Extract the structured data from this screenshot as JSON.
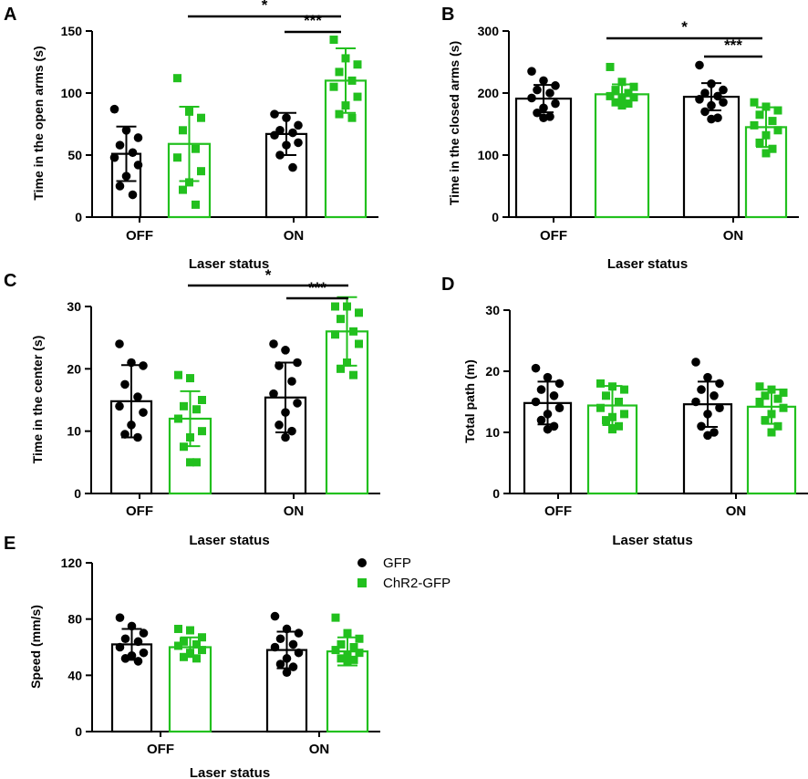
{
  "colors": {
    "gfp": "#000000",
    "chr2": "#22c01e"
  },
  "legend": [
    {
      "name": "GFP",
      "color": "#000000",
      "marker": "circle"
    },
    {
      "name": "ChR2-GFP",
      "color": "#22c01e",
      "marker": "square"
    }
  ],
  "chart_data": [
    {
      "panel": "A",
      "type": "bar",
      "ylabel": "Time in the open arms (s)",
      "xlabel": "Laser status",
      "ylim": [
        0,
        150
      ],
      "yticks": [
        0,
        50,
        100,
        150
      ],
      "categories": [
        "OFF",
        "ON"
      ],
      "series": [
        {
          "name": "GFP",
          "means": [
            51,
            67
          ],
          "sd": [
            22,
            17
          ],
          "points": [
            [
              87,
              70,
              64,
              58,
              52,
              48,
              42,
              33,
              25,
              18
            ],
            [
              83,
              80,
              74,
              70,
              68,
              66,
              60,
              58,
              50,
              40
            ]
          ]
        },
        {
          "name": "ChR2-GFP",
          "means": [
            59,
            110
          ],
          "sd": [
            30,
            26
          ],
          "points": [
            [
              112,
              85,
              80,
              70,
              55,
              48,
              37,
              28,
              22,
              10
            ],
            [
              143,
              128,
              123,
              117,
              110,
              105,
              97,
              90,
              83,
              80
            ]
          ]
        }
      ],
      "significance": [
        {
          "label": "*",
          "from": "OFF ChR2-GFP",
          "to": "ON ChR2-GFP"
        },
        {
          "label": "***",
          "from": "ON GFP",
          "to": "ON ChR2-GFP"
        }
      ]
    },
    {
      "panel": "B",
      "type": "bar",
      "ylabel": "Time in the closed arms (s)",
      "xlabel": "Laser status",
      "ylim": [
        0,
        300
      ],
      "yticks": [
        0,
        100,
        200,
        300
      ],
      "categories": [
        "OFF",
        "ON"
      ],
      "series": [
        {
          "name": "GFP",
          "means": [
            191,
            194
          ],
          "sd": [
            22,
            22
          ],
          "points": [
            [
              235,
              220,
              212,
              205,
              200,
              192,
              183,
              176,
              168,
              162,
              160
            ],
            [
              245,
              215,
              205,
              200,
              195,
              190,
              185,
              180,
              170,
              160,
              158
            ]
          ]
        },
        {
          "name": "ChR2-GFP",
          "means": [
            198,
            145
          ],
          "sd": [
            16,
            32
          ],
          "points": [
            [
              242,
              218,
              210,
              205,
              200,
              195,
              193,
              190,
              185,
              183,
              180
            ],
            [
              185,
              178,
              172,
              165,
              155,
              148,
              140,
              132,
              120,
              110,
              103
            ]
          ]
        }
      ],
      "significance": [
        {
          "label": "*",
          "from": "OFF ChR2-GFP",
          "to": "ON ChR2-GFP"
        },
        {
          "label": "***",
          "from": "ON GFP",
          "to": "ON ChR2-GFP"
        }
      ]
    },
    {
      "panel": "C",
      "type": "bar",
      "ylabel": "Time in the center (s)",
      "xlabel": "Laser status",
      "ylim": [
        0,
        30
      ],
      "yticks": [
        0,
        10,
        20,
        30
      ],
      "categories": [
        "OFF",
        "ON"
      ],
      "series": [
        {
          "name": "GFP",
          "means": [
            14.8,
            15.4
          ],
          "sd": [
            5.8,
            5.6
          ],
          "points": [
            [
              24,
              21,
              20.5,
              17.5,
              15.5,
              14,
              13,
              11,
              9.5,
              9
            ],
            [
              24,
              23,
              21,
              20.5,
              18,
              16,
              14.5,
              13,
              11,
              10,
              9
            ]
          ]
        },
        {
          "name": "ChR2-GFP",
          "means": [
            12,
            26
          ],
          "sd": [
            4.4,
            5.5
          ],
          "points": [
            [
              19,
              18.5,
              15,
              14,
              13.5,
              12,
              10,
              9,
              7.5,
              5,
              5
            ],
            [
              30,
              30,
              29,
              28,
              26,
              25.5,
              24,
              21,
              20,
              19
            ]
          ]
        }
      ],
      "significance": [
        {
          "label": "*",
          "from": "OFF ChR2-GFP",
          "to": "ON ChR2-GFP"
        },
        {
          "label": "***",
          "from": "ON GFP",
          "to": "ON ChR2-GFP"
        }
      ]
    },
    {
      "panel": "D",
      "type": "bar",
      "ylabel": "Total path (m)",
      "xlabel": "Laser status",
      "ylim": [
        0,
        30
      ],
      "yticks": [
        0,
        10,
        20,
        30
      ],
      "categories": [
        "OFF",
        "ON"
      ],
      "series": [
        {
          "name": "GFP",
          "means": [
            14.8,
            14.6
          ],
          "sd": [
            3.5,
            3.7
          ],
          "points": [
            [
              20.5,
              19,
              18,
              17,
              16,
              15,
              14,
              13,
              12,
              11,
              10.5
            ],
            [
              21.5,
              19,
              18,
              17,
              16,
              15,
              14,
              13,
              11,
              10,
              9.5
            ]
          ]
        },
        {
          "name": "ChR2-GFP",
          "means": [
            14.4,
            14.2
          ],
          "sd": [
            3.2,
            2.8
          ],
          "points": [
            [
              18,
              17.5,
              17,
              16,
              15,
              14,
              13,
              12.5,
              12,
              11,
              10.5
            ],
            [
              17.5,
              17,
              16.5,
              16,
              15.5,
              15,
              14,
              13,
              12,
              11,
              10
            ]
          ]
        }
      ],
      "significance": []
    },
    {
      "panel": "E",
      "type": "bar",
      "ylabel": "Speed (mm/s)",
      "xlabel": "Laser status",
      "ylim": [
        0,
        120
      ],
      "yticks": [
        0,
        40,
        80,
        120
      ],
      "categories": [
        "OFF",
        "ON"
      ],
      "series": [
        {
          "name": "GFP",
          "means": [
            62,
            58
          ],
          "sd": [
            11,
            13
          ],
          "points": [
            [
              81,
              75,
              70,
              66,
              64,
              60,
              56,
              54,
              52,
              50
            ],
            [
              82,
              73,
              70,
              66,
              62,
              60,
              56,
              52,
              48,
              46,
              42
            ]
          ]
        },
        {
          "name": "ChR2-GFP",
          "means": [
            60,
            57
          ],
          "sd": [
            7,
            10
          ],
          "points": [
            [
              73,
              72,
              67,
              64,
              62,
              61,
              58,
              56,
              53,
              52
            ],
            [
              81,
              70,
              66,
              62,
              60,
              58,
              56,
              54,
              52,
              51,
              50
            ]
          ]
        }
      ],
      "significance": []
    }
  ]
}
